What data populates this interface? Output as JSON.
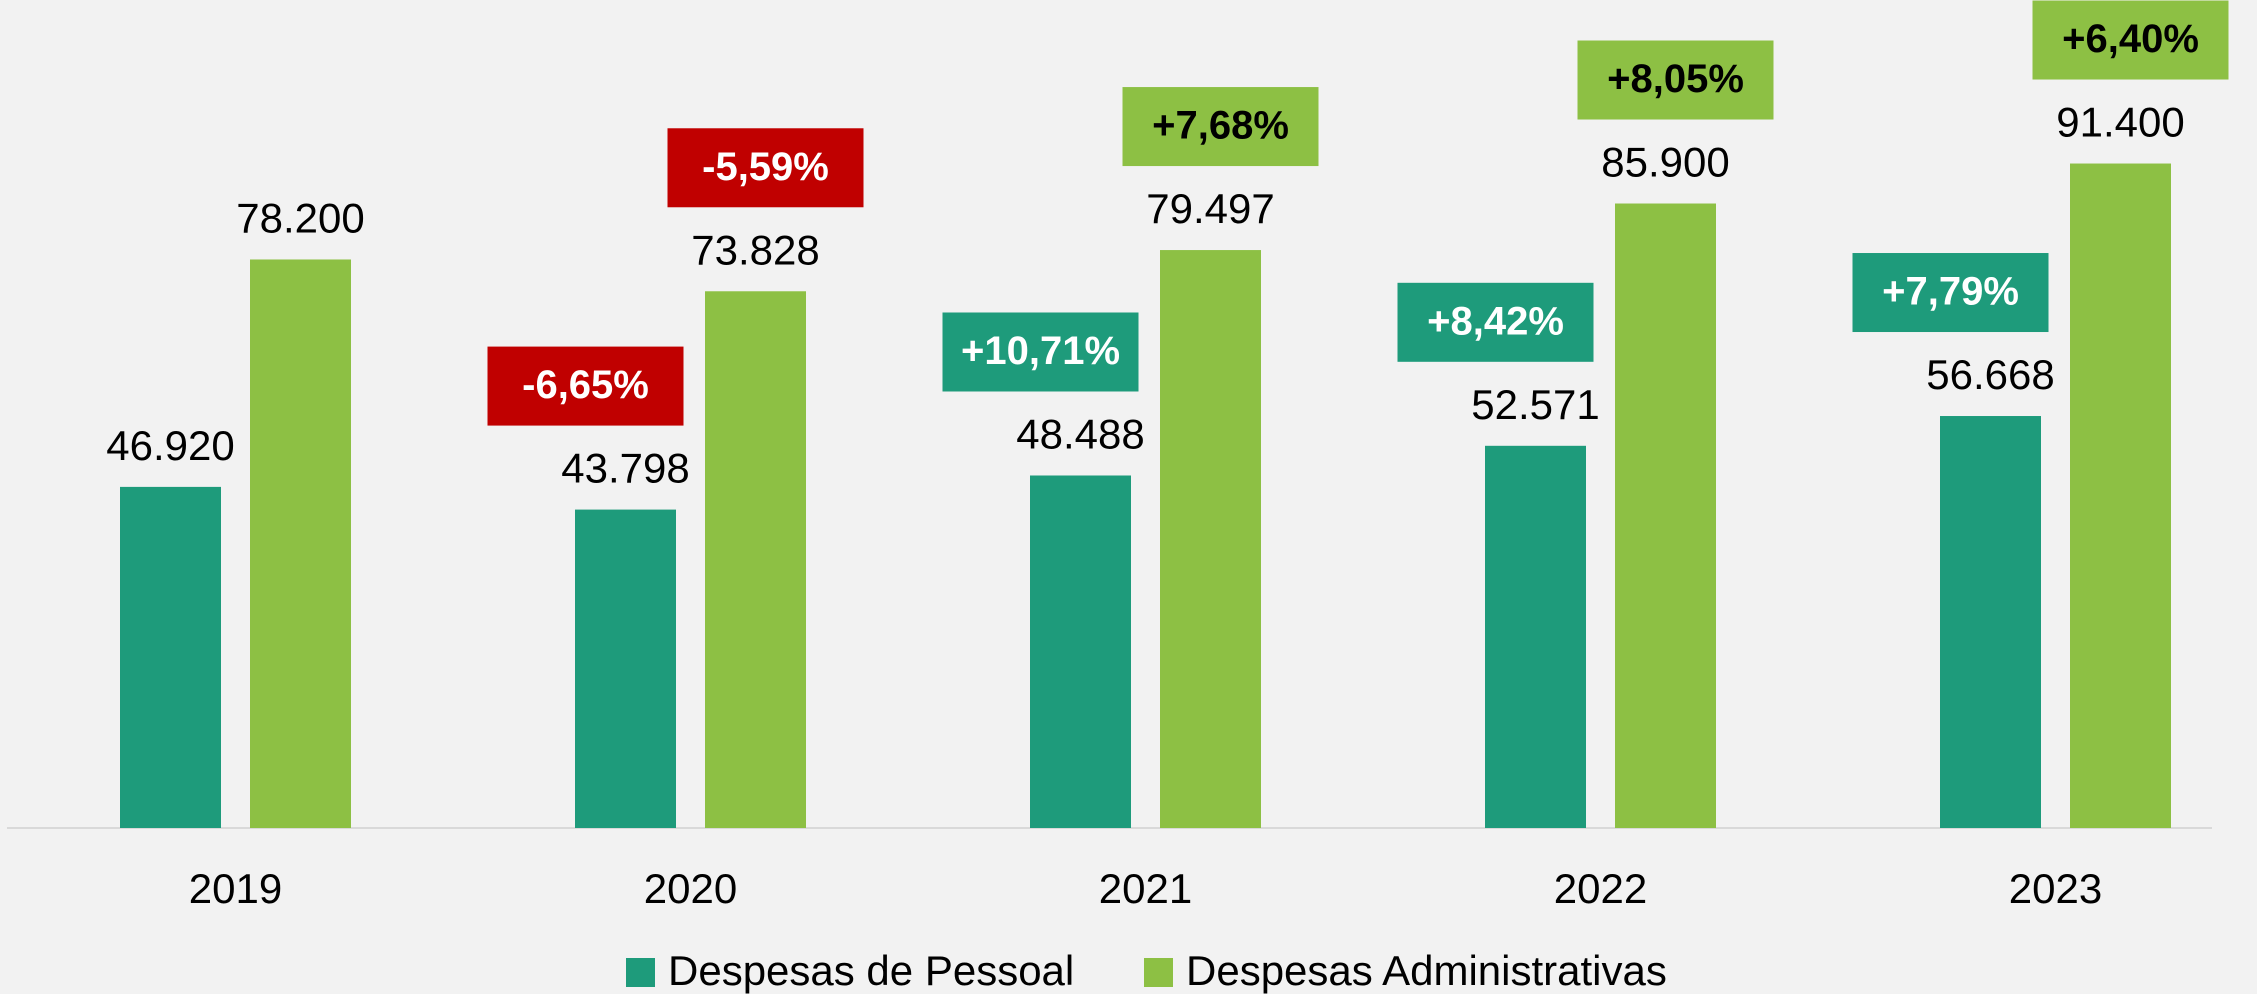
{
  "chart_data": {
    "type": "bar",
    "categories": [
      "2019",
      "2020",
      "2021",
      "2022",
      "2023"
    ],
    "ylim": [
      0,
      100000
    ],
    "series": [
      {
        "name": "Despesas de Pessoal",
        "color": "#1e9b7b",
        "values": [
          46920,
          43798,
          48488,
          52571,
          56668
        ],
        "value_labels": [
          "46.920",
          "43.798",
          "48.488",
          "52.571",
          "56.668"
        ],
        "change_labels": [
          null,
          "-6,65%",
          "+10,71%",
          "+8,42%",
          "+7,79%"
        ],
        "change_colors": [
          null,
          "#c00000",
          "#1e9b7b",
          "#1e9b7b",
          "#1e9b7b"
        ],
        "change_text_colors": [
          null,
          "#ffffff",
          "#ffffff",
          "#ffffff",
          "#ffffff"
        ]
      },
      {
        "name": "Despesas Administrativas",
        "color": "#8dc044",
        "values": [
          78200,
          73828,
          79497,
          85900,
          91400
        ],
        "value_labels": [
          "78.200",
          "73.828",
          "79.497",
          "85.900",
          "91.400"
        ],
        "change_labels": [
          null,
          "-5,59%",
          "+7,68%",
          "+8,05%",
          "+6,40%"
        ],
        "change_colors": [
          null,
          "#c00000",
          "#8dc044",
          "#8dc044",
          "#8dc044"
        ],
        "change_text_colors": [
          null,
          "#ffffff",
          "#000000",
          "#000000",
          "#000000"
        ]
      }
    ]
  }
}
